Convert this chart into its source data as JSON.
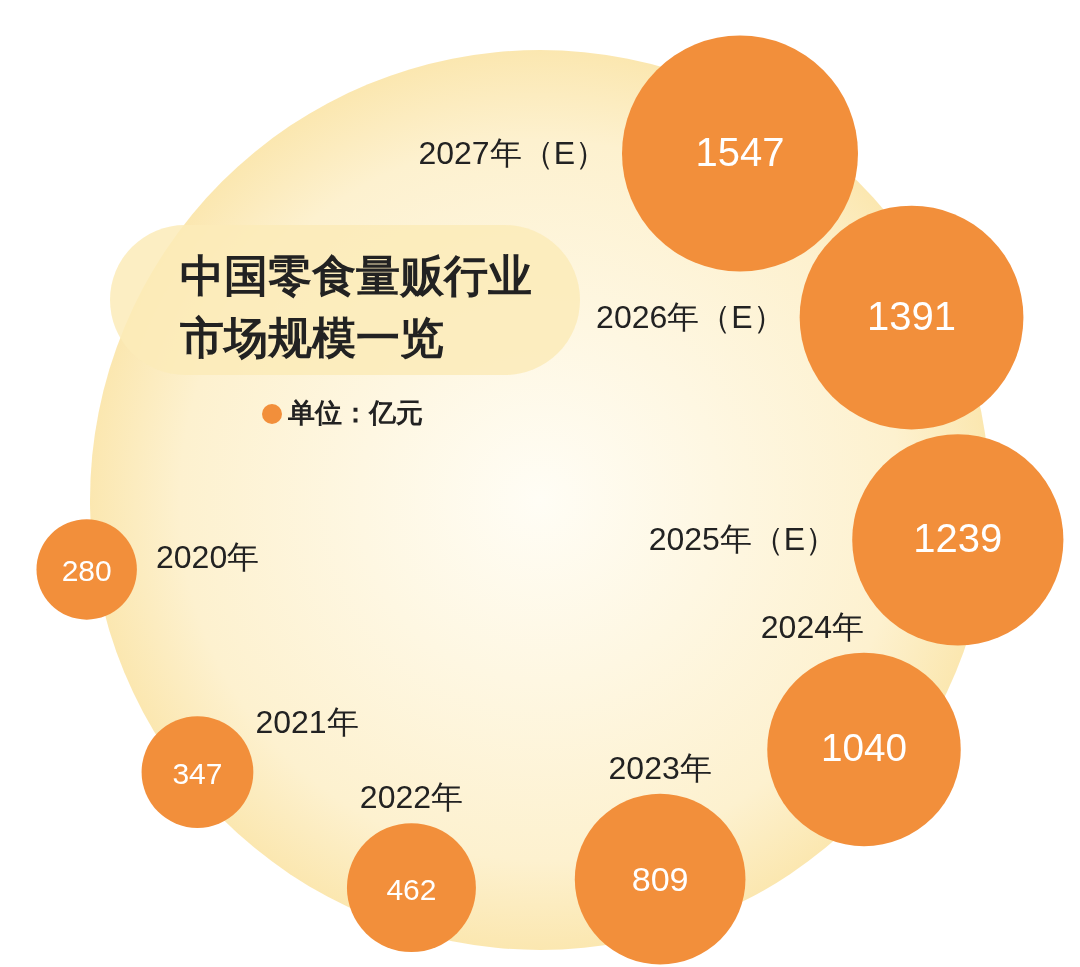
{
  "chart_data": {
    "type": "other",
    "title": "中国零食量贩行业市场规模一览",
    "annotations": [
      "单位：亿元"
    ],
    "categories": [
      "2020年",
      "2021年",
      "2022年",
      "2023年",
      "2024年",
      "2025年（E）",
      "2026年（E）",
      "2027年（E）"
    ],
    "values": [
      280,
      347,
      462,
      809,
      1040,
      1239,
      1391,
      1547
    ],
    "color": "#f28f3b",
    "data_labels": true
  }
}
